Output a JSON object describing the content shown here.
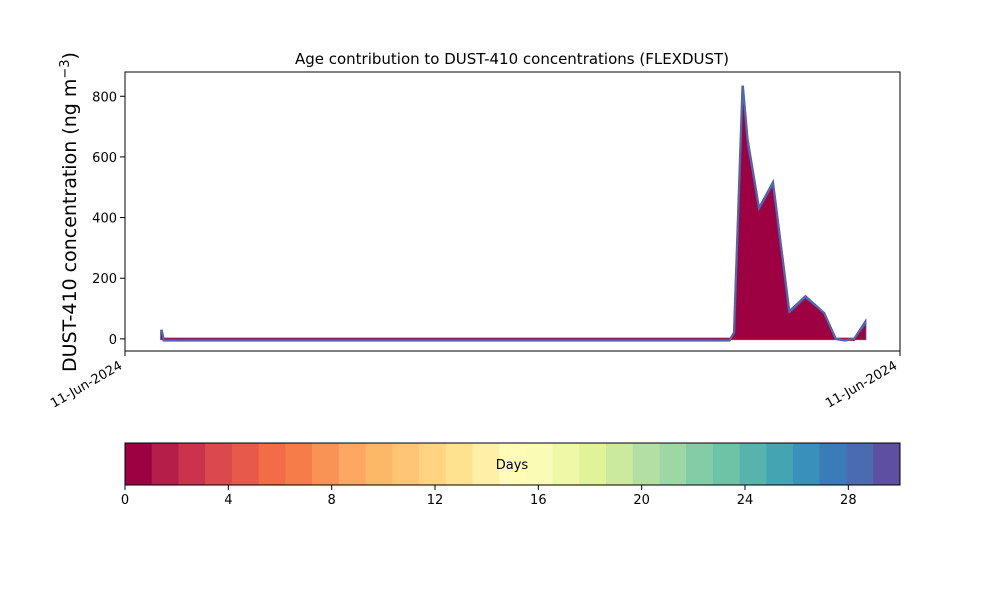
{
  "chart_data": {
    "type": "area",
    "title": "Age contribution to DUST-410 concentrations (FLEXDUST)",
    "ylabel_main": "DUST-410 concentration (ng m",
    "ylabel_sup": "−3",
    "ylabel_close": ")",
    "xlabel": "",
    "x_tick_labels": [
      "11-Jun-2024",
      "11-Jun-2024"
    ],
    "ylim": [
      -40,
      880
    ],
    "y_ticks": [
      0,
      200,
      400,
      600,
      800
    ],
    "grid": false,
    "x": [
      0.047,
      0.05,
      0.055,
      0.1,
      0.2,
      0.3,
      0.4,
      0.5,
      0.6,
      0.7,
      0.78,
      0.786,
      0.797,
      0.803,
      0.818,
      0.836,
      0.857,
      0.878,
      0.902,
      0.917,
      0.929,
      0.941,
      0.955
    ],
    "series": [
      {
        "color": "#9e0142",
        "values": [
          20,
          -5,
          -5,
          -5,
          -5,
          -5,
          -5,
          -5,
          -5,
          -5,
          -5,
          10,
          780,
          620,
          420,
          500,
          80,
          130,
          80,
          0,
          -5,
          -5,
          40
        ]
      },
      {
        "color": "#5e4fa2",
        "values": [
          30,
          -5,
          -5,
          -5,
          -5,
          -5,
          -5,
          -5,
          -5,
          -5,
          -5,
          20,
          835,
          660,
          430,
          515,
          90,
          140,
          85,
          0,
          -5,
          0,
          55
        ]
      }
    ],
    "colorbar": {
      "label": "Days",
      "min": 0,
      "max": 30,
      "ticks": [
        0,
        4,
        8,
        12,
        16,
        20,
        24,
        28
      ],
      "colors": [
        "#9e0142",
        "#b51e48",
        "#cb334c",
        "#dc494c",
        "#e75948",
        "#f26d45",
        "#f67d4a",
        "#f99355",
        "#fda862",
        "#fdb867",
        "#fec574",
        "#fed481",
        "#fee28f",
        "#fff0a8",
        "#fffbb8",
        "#f8fcb4",
        "#eff8a6",
        "#e0f399",
        "#cbea9d",
        "#b3e0a2",
        "#9cd7a4",
        "#83cca6",
        "#6cc3a5",
        "#58b4ab",
        "#45a4b1",
        "#3990bb",
        "#3a7cb8",
        "#4a6bb0",
        "#5e4fa2"
      ]
    }
  }
}
